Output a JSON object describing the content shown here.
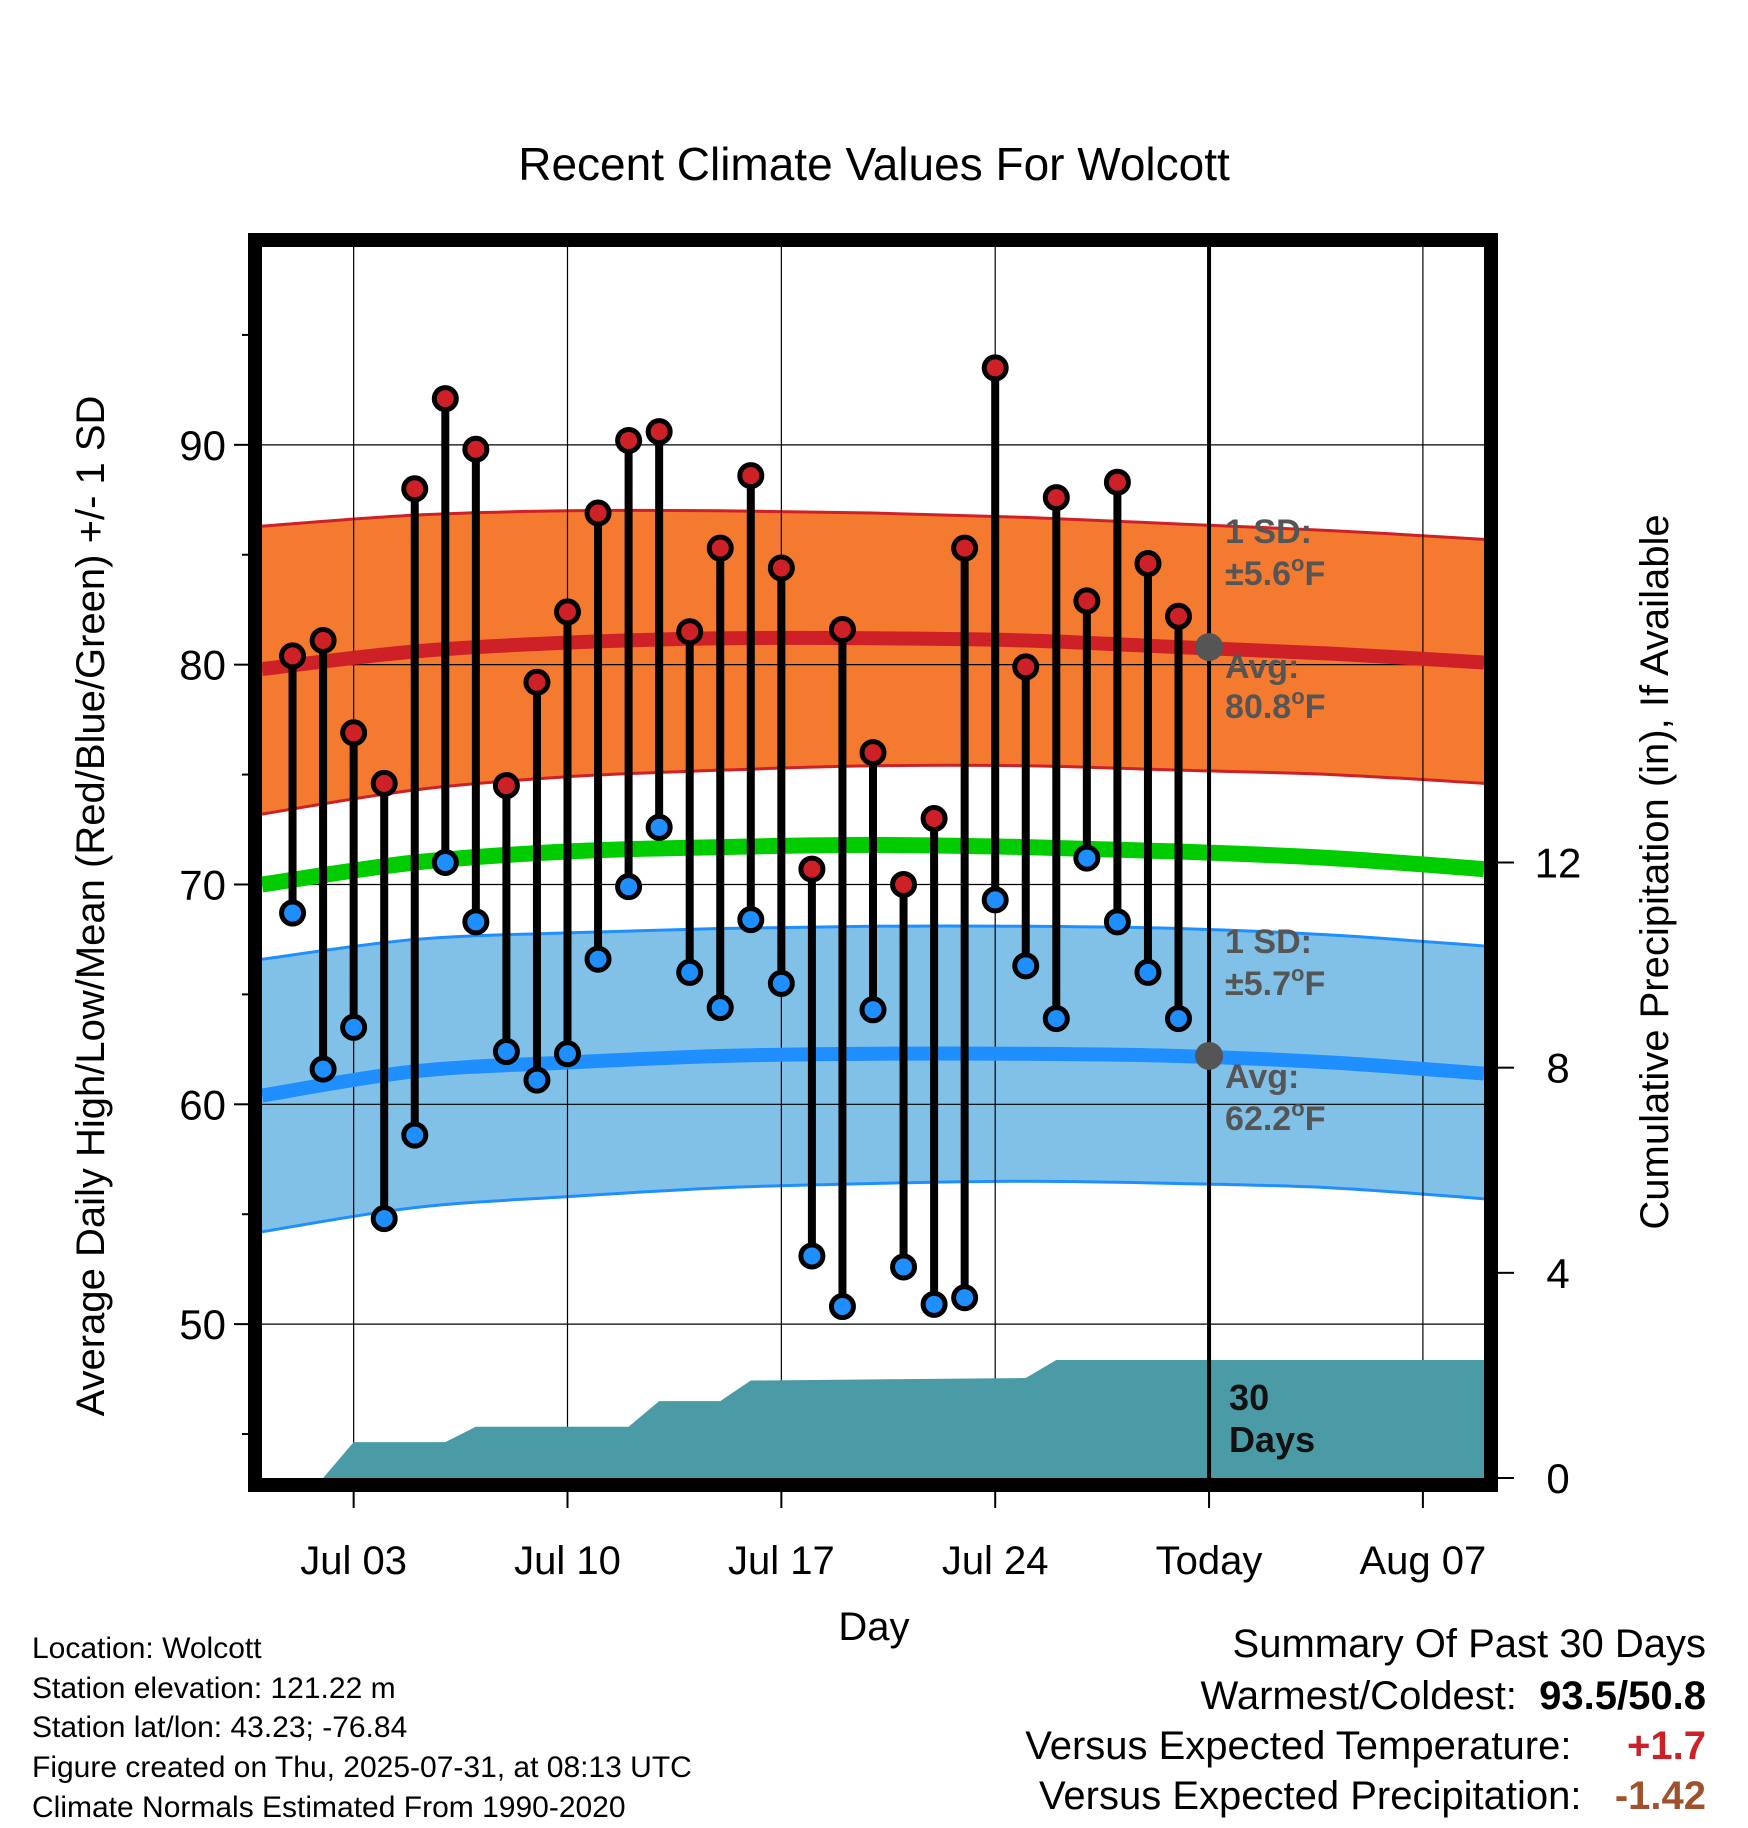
{
  "chart_data": {
    "type": "line",
    "title": "Recent Climate Values For Wolcott",
    "xlabel": "Day",
    "ylabel_left": "Average Daily High/Low/Mean (Red/Blue/Green) +/- 1 SD",
    "ylabel_right": "Cumulative Precipitation (in), If Available",
    "ylim_left": [
      43,
      99
    ],
    "yticks_left": [
      50,
      60,
      70,
      80,
      90
    ],
    "ylim_right": [
      0,
      24
    ],
    "yticks_right": [
      0,
      4,
      8,
      12
    ],
    "x_ticks": [
      {
        "day": 3,
        "label": "Jul 03"
      },
      {
        "day": 10,
        "label": "Jul 10"
      },
      {
        "day": 17,
        "label": "Jul 17"
      },
      {
        "day": 24,
        "label": "Jul 24"
      },
      {
        "day": 31,
        "label": "Today"
      },
      {
        "day": 38,
        "label": "Aug 07"
      }
    ],
    "today_day": 31,
    "daily": [
      {
        "day": 1,
        "high": 80.4,
        "low": 68.7
      },
      {
        "day": 2,
        "high": 81.1,
        "low": 61.6
      },
      {
        "day": 3,
        "high": 76.9,
        "low": 63.5
      },
      {
        "day": 4,
        "high": 74.6,
        "low": 54.8
      },
      {
        "day": 5,
        "high": 88.0,
        "low": 58.6
      },
      {
        "day": 6,
        "high": 92.1,
        "low": 71.0
      },
      {
        "day": 7,
        "high": 89.8,
        "low": 68.3
      },
      {
        "day": 8,
        "high": 74.5,
        "low": 62.4
      },
      {
        "day": 9,
        "high": 79.2,
        "low": 61.1
      },
      {
        "day": 10,
        "high": 82.4,
        "low": 62.3
      },
      {
        "day": 11,
        "high": 86.9,
        "low": 66.6
      },
      {
        "day": 12,
        "high": 90.2,
        "low": 69.9
      },
      {
        "day": 13,
        "high": 90.6,
        "low": 72.6
      },
      {
        "day": 14,
        "high": 81.5,
        "low": 66.0
      },
      {
        "day": 15,
        "high": 85.3,
        "low": 64.4
      },
      {
        "day": 16,
        "high": 88.6,
        "low": 68.4
      },
      {
        "day": 17,
        "high": 84.4,
        "low": 65.5
      },
      {
        "day": 18,
        "high": 70.7,
        "low": 53.1
      },
      {
        "day": 19,
        "high": 81.6,
        "low": 50.8
      },
      {
        "day": 20,
        "high": 76.0,
        "low": 64.3
      },
      {
        "day": 21,
        "high": 70.0,
        "low": 52.6
      },
      {
        "day": 22,
        "high": 73.0,
        "low": 50.9
      },
      {
        "day": 23,
        "high": 85.3,
        "low": 51.2
      },
      {
        "day": 24,
        "high": 93.5,
        "low": 69.3
      },
      {
        "day": 25,
        "high": 79.9,
        "low": 66.3
      },
      {
        "day": 26,
        "high": 87.6,
        "low": 63.9
      },
      {
        "day": 27,
        "high": 82.9,
        "low": 71.2
      },
      {
        "day": 28,
        "high": 88.3,
        "low": 68.3
      },
      {
        "day": 29,
        "high": 84.6,
        "low": 66.0
      },
      {
        "day": 30,
        "high": 82.2,
        "low": 63.9
      }
    ],
    "normals": {
      "days": [
        0,
        5,
        10,
        15,
        20,
        25,
        30,
        35,
        40
      ],
      "avg_high": [
        79.8,
        80.6,
        81.0,
        81.2,
        81.2,
        81.1,
        80.8,
        80.5,
        80.1
      ],
      "avg_low": [
        60.4,
        61.5,
        61.9,
        62.2,
        62.3,
        62.3,
        62.2,
        61.9,
        61.4
      ],
      "avg_mean": [
        70.0,
        71.0,
        71.5,
        71.7,
        71.8,
        71.7,
        71.5,
        71.2,
        70.7
      ],
      "high_sd_upper": [
        86.3,
        86.8,
        87.0,
        87.0,
        86.9,
        86.7,
        86.4,
        86.1,
        85.7
      ],
      "high_sd_lower": [
        73.2,
        74.3,
        74.9,
        75.2,
        75.4,
        75.4,
        75.2,
        75.0,
        74.6
      ],
      "low_sd_upper": [
        66.6,
        67.5,
        67.8,
        68.0,
        68.1,
        68.1,
        68.0,
        67.7,
        67.2
      ],
      "low_sd_lower": [
        54.2,
        55.3,
        55.8,
        56.2,
        56.4,
        56.5,
        56.4,
        56.2,
        55.7
      ]
    },
    "precip_cumulative": [
      {
        "day": 0,
        "value": 0
      },
      {
        "day": 2,
        "value": 0
      },
      {
        "day": 3,
        "value": 0.7
      },
      {
        "day": 6,
        "value": 0.7
      },
      {
        "day": 7,
        "value": 1.0
      },
      {
        "day": 12,
        "value": 1.0
      },
      {
        "day": 13,
        "value": 1.5
      },
      {
        "day": 15,
        "value": 1.5
      },
      {
        "day": 16,
        "value": 1.9
      },
      {
        "day": 25,
        "value": 1.95
      },
      {
        "day": 26,
        "value": 2.3
      },
      {
        "day": 40,
        "value": 2.3
      }
    ],
    "annotations": {
      "high_sd_label": "1 SD:",
      "high_sd_value": "±5.6",
      "high_avg_label": "Avg:",
      "high_avg_value": "80.8",
      "low_sd_label": "1 SD:",
      "low_sd_value": "±5.7",
      "low_avg_label": "Avg:",
      "low_avg_value": "62.2",
      "degree_unit": "o",
      "temp_unit": "F",
      "period_line1": "30",
      "period_line2": "Days"
    },
    "colors": {
      "high_band": "#f47a30",
      "high_line": "#cd2127",
      "low_band": "#82c1e7",
      "low_line": "#1f8fff",
      "mean_line": "#00cc00",
      "precip": "#4a9ba6",
      "annotation": "#555555",
      "high_marker": "#cd2127",
      "low_marker": "#1f8fff"
    }
  },
  "station_info": {
    "location": "Location: Wolcott",
    "elevation": "Station elevation: 121.22 m",
    "latlon": "Station lat/lon: 43.23; -76.84",
    "created": "Figure created on Thu, 2025-07-31, at 08:13 UTC",
    "normals": "Climate Normals Estimated From 1990-2020"
  },
  "summary": {
    "title": "Summary Of Past 30 Days",
    "warmest_coldest_label": "Warmest/Coldest:",
    "warmest": "93.5",
    "separator": "/",
    "coldest": "50.8",
    "temp_label": "Versus Expected Temperature:",
    "temp_value": "+1.7",
    "temp_color": "#cd2127",
    "precip_label": "Versus Expected Precipitation:",
    "precip_value": "-1.42",
    "precip_color": "#a0522d"
  }
}
